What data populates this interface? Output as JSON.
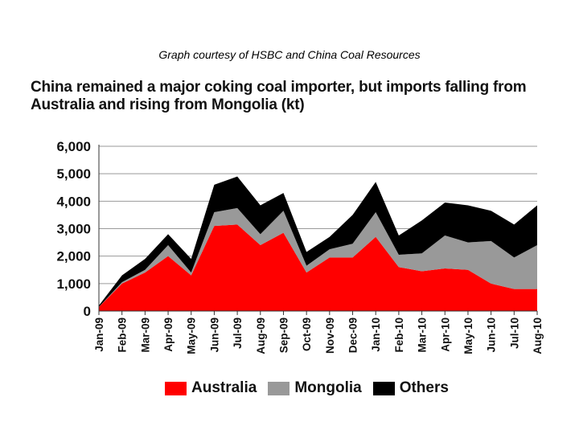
{
  "caption": "Graph courtesy of HSBC and China Coal Resources",
  "chart_data": {
    "type": "area",
    "stacked": true,
    "title": "China remained a major coking coal importer, but imports falling from Australia and rising from Mongolia (kt)",
    "xlabel": "",
    "ylabel": "",
    "ylim": [
      0,
      6000
    ],
    "yticks": [
      "6,000",
      "5,000",
      "4,000",
      "3,000",
      "2,000",
      "1,000",
      "0"
    ],
    "grid": true,
    "legend_position": "bottom",
    "categories": [
      "Jan-09",
      "Feb-09",
      "Mar-09",
      "Apr-09",
      "May-09",
      "Jun-09",
      "Jul-09",
      "Aug-09",
      "Sep-09",
      "Oct-09",
      "Nov-09",
      "Dec-09",
      "Jan-10",
      "Feb-10",
      "Mar-10",
      "Apr-10",
      "May-10",
      "Jun-10",
      "Jul-10",
      "Aug-10"
    ],
    "series": [
      {
        "name": "Australia",
        "color": "#ff0000",
        "values": [
          150,
          1000,
          1400,
          2000,
          1300,
          3100,
          3150,
          2400,
          2850,
          1400,
          1950,
          1950,
          2700,
          1600,
          1450,
          1550,
          1500,
          1000,
          800,
          800
        ]
      },
      {
        "name": "Mongolia",
        "color": "#999999",
        "values": [
          0,
          50,
          100,
          400,
          100,
          500,
          600,
          400,
          800,
          250,
          300,
          500,
          900,
          450,
          650,
          1200,
          1000,
          1550,
          1150,
          1600
        ]
      },
      {
        "name": "Others",
        "color": "#000000",
        "values": [
          50,
          250,
          400,
          400,
          500,
          1000,
          1150,
          1050,
          650,
          500,
          450,
          1050,
          1100,
          700,
          1200,
          1200,
          1350,
          1100,
          1200,
          1450
        ]
      }
    ]
  }
}
